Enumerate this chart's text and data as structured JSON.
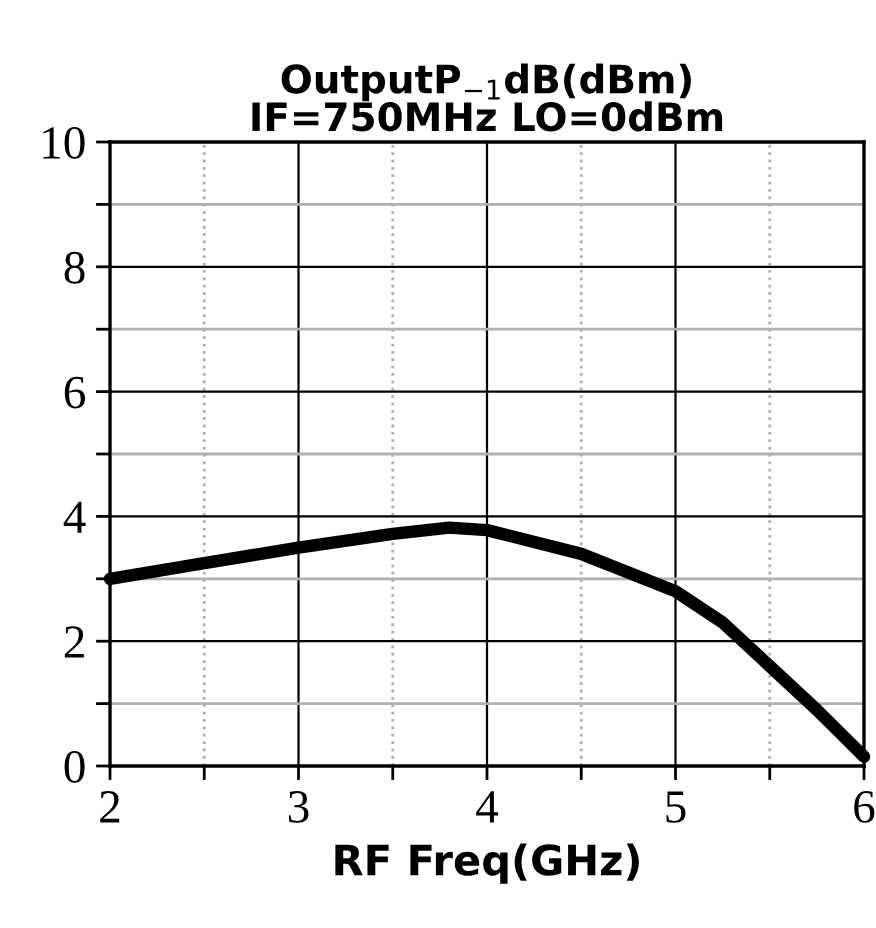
{
  "chart_data": {
    "type": "line",
    "title": "OutputP$_{−1}$dB(dBm)\nIF=750MHz LO=0dBm",
    "xlabel": "RF Freq(GHz)",
    "x": [
      2,
      2.5,
      3,
      3.5,
      3.8,
      4,
      4.5,
      5,
      5.25,
      5.5,
      5.75,
      6
    ],
    "series": [
      {
        "color": "#000000",
        "values": [
          3.0,
          3.25,
          3.5,
          3.72,
          3.82,
          3.78,
          3.4,
          2.8,
          2.3,
          1.6,
          0.9,
          0.15
        ]
      }
    ],
    "xlim": [
      2,
      6
    ],
    "xticks": [
      2,
      {
        "value": 2.5,
        "label": null
      },
      3,
      {
        "value": 3.5,
        "label": null
      },
      4,
      {
        "value": 4.5,
        "label": null
      },
      5,
      {
        "value": 5.5,
        "label": null
      },
      6
    ],
    "ylim": [
      0,
      10
    ],
    "yticks": [
      0,
      {
        "value": 1,
        "label": null
      },
      2,
      {
        "value": 3,
        "label": null
      },
      4,
      {
        "value": 5,
        "label": null
      },
      6,
      {
        "value": 7,
        "label": null
      },
      8,
      {
        "value": 9,
        "label": null
      },
      10
    ],
    "grid": true,
    "line_style": "solid",
    "marker": "none"
  }
}
